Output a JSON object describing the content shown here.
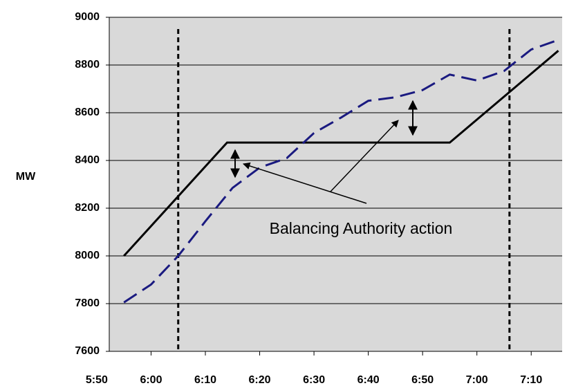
{
  "chart_data": {
    "type": "line",
    "ylabel": "MW",
    "annotation": "Balancing Authority action",
    "xlim": [
      352.3,
      435.7
    ],
    "ylim": [
      7600,
      9000
    ],
    "xticks": [
      {
        "value": 350,
        "label": "5:50"
      },
      {
        "value": 360,
        "label": "6:00"
      },
      {
        "value": 370,
        "label": "6:10"
      },
      {
        "value": 380,
        "label": "6:20"
      },
      {
        "value": 390,
        "label": "6:30"
      },
      {
        "value": 400,
        "label": "6:40"
      },
      {
        "value": 410,
        "label": "6:50"
      },
      {
        "value": 420,
        "label": "7:00"
      },
      {
        "value": 430,
        "label": "7:10"
      }
    ],
    "yticks": [
      7600,
      7800,
      8000,
      8200,
      8400,
      8600,
      8800,
      9000
    ],
    "grid": true,
    "vlines": [
      365,
      426
    ],
    "series": [
      {
        "color": "#000000",
        "dash": false,
        "x": [
          355,
          374,
          415,
          435
        ],
        "values": [
          8000,
          8475,
          8475,
          8860
        ]
      },
      {
        "color": "#1a1a80",
        "dash": true,
        "x": [
          355,
          360,
          365,
          370,
          375,
          380,
          385,
          390,
          395,
          400,
          405,
          410,
          415,
          420,
          425,
          430,
          435
        ],
        "values": [
          7805,
          7880,
          8000,
          8145,
          8285,
          8370,
          8410,
          8515,
          8580,
          8650,
          8665,
          8695,
          8760,
          8735,
          8775,
          8865,
          8905
        ]
      }
    ]
  }
}
